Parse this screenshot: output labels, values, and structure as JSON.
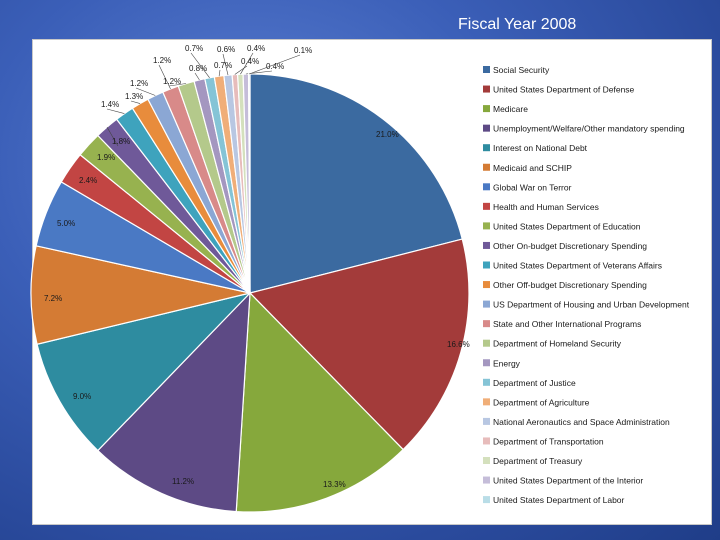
{
  "slide": {
    "title": "Fiscal Year 2008"
  },
  "chart_data": {
    "type": "pie",
    "title": "Fiscal Year 2008",
    "legend_position": "right",
    "series": [
      {
        "label": "Social Security",
        "value": 21.0,
        "label_text": "21.0%",
        "color": "#3b6aa0"
      },
      {
        "label": "United States Department of Defense",
        "value": 16.6,
        "label_text": "16.6%",
        "color": "#a33b3a"
      },
      {
        "label": "Medicare",
        "value": 13.3,
        "label_text": "13.3%",
        "color": "#86a83c"
      },
      {
        "label": "Unemployment/Welfare/Other mandatory spending",
        "value": 11.2,
        "label_text": "11.2%",
        "color": "#5d4a85"
      },
      {
        "label": "Interest on National Debt",
        "value": 9.0,
        "label_text": "9.0%",
        "color": "#2e8ca0"
      },
      {
        "label": "Medicaid and SCHIP",
        "value": 7.2,
        "label_text": "7.2%",
        "color": "#d47b34"
      },
      {
        "label": "Global War on Terror",
        "value": 5.0,
        "label_text": "5.0%",
        "color": "#4a79c4"
      },
      {
        "label": "Health and Human Services",
        "value": 2.4,
        "label_text": "2.4%",
        "color": "#c24543"
      },
      {
        "label": "United States Department of Education",
        "value": 1.9,
        "label_text": "1.9%",
        "color": "#97b24f"
      },
      {
        "label": "Other On-budget Discretionary Spending",
        "value": 1.8,
        "label_text": "1.8%",
        "color": "#6f5999"
      },
      {
        "label": "United States Department of Veterans Affairs",
        "value": 1.4,
        "label_text": "1.4%",
        "color": "#3ea3bd"
      },
      {
        "label": "Other Off-budget Discretionary Spending",
        "value": 1.3,
        "label_text": "1.3%",
        "color": "#e88c3c"
      },
      {
        "label": "US Department of Housing and Urban Development",
        "value": 1.2,
        "label_text": "1.2%",
        "color": "#8ba7d4"
      },
      {
        "label": "State and Other International Programs",
        "value": 1.2,
        "label_text": "1.2%",
        "color": "#d88a89"
      },
      {
        "label": "Department of Homeland Security",
        "value": 1.2,
        "label_text": "1.2%",
        "color": "#b4c98b"
      },
      {
        "label": "Energy",
        "value": 0.8,
        "label_text": "0.8%",
        "color": "#a497c0"
      },
      {
        "label": "Department of Justice",
        "value": 0.7,
        "label_text": "0.7%",
        "color": "#85c4d6"
      },
      {
        "label": "Department of Agriculture",
        "value": 0.7,
        "label_text": "0.7%",
        "color": "#f0ae78"
      },
      {
        "label": "National Aeronautics and Space Administration",
        "value": 0.6,
        "label_text": "0.6%",
        "color": "#b8c7e2"
      },
      {
        "label": "Department of Transportation",
        "value": 0.4,
        "label_text": "0.4%",
        "color": "#e7bcbb"
      },
      {
        "label": "Department of Treasury",
        "value": 0.4,
        "label_text": "0.4%",
        "color": "#d4e0bd"
      },
      {
        "label": "United States Department of the Interior",
        "value": 0.4,
        "label_text": "0.4%",
        "color": "#c5bdd9"
      },
      {
        "label": "United States Department of Labor",
        "value": 0.1,
        "label_text": "0.1%",
        "color": "#b9dde7"
      }
    ]
  }
}
